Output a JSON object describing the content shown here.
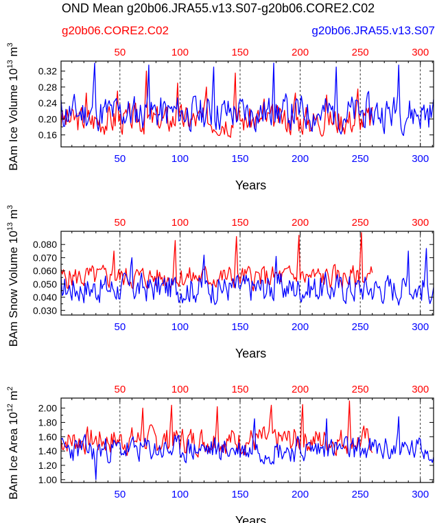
{
  "title": "OND Mean g20b06.JRA55.v13.S07-g20b06.CORE2.C02",
  "legend": {
    "red_label": "g20b06.CORE2.C02",
    "blue_label": "g20b06.JRA55.v13.S07"
  },
  "colors": {
    "red": "#ff0000",
    "blue": "#0000ff",
    "axis": "#000000"
  },
  "chart_data": [
    {
      "type": "line",
      "ylabel_main": "BAm Ice Volume 10",
      "ylabel_exp": "13",
      "ylabel_unit": "m",
      "ylabel_unit_exp": "3",
      "xlabel": "Years",
      "ylim": [
        0.13,
        0.345
      ],
      "yticks": [
        0.16,
        0.2,
        0.24,
        0.28,
        0.32
      ],
      "ytick_labels": [
        "0.16",
        "0.20",
        "0.24",
        "0.28",
        "0.32"
      ],
      "x_bottom_range": [
        1,
        311
      ],
      "x_top_range": [
        1,
        311
      ],
      "xticks": [
        50,
        100,
        150,
        200,
        250,
        300
      ],
      "xtick_labels": [
        "50",
        "100",
        "150",
        "200",
        "250",
        "300"
      ],
      "series": [
        {
          "name": "g20b06.CORE2.C02",
          "color": "red",
          "n": 260,
          "base": 0.198,
          "amp": 0.032,
          "seed": 3,
          "peaks": [
            [
              22,
              0.265
            ],
            [
              48,
              0.27
            ],
            [
              72,
              0.32
            ],
            [
              98,
              0.29
            ],
            [
              122,
              0.28
            ],
            [
              146,
              0.315
            ],
            [
              170,
              0.25
            ],
            [
              196,
              0.265
            ],
            [
              222,
              0.26
            ],
            [
              248,
              0.275
            ]
          ]
        },
        {
          "name": "g20b06.JRA55.v13.S07",
          "color": "blue",
          "n": 311,
          "base": 0.215,
          "amp": 0.04,
          "seed": 11,
          "peaks": [
            [
              29,
              0.34
            ],
            [
              74,
              0.335
            ],
            [
              128,
              0.33
            ],
            [
              178,
              0.34
            ],
            [
              230,
              0.33
            ],
            [
              282,
              0.335
            ]
          ]
        }
      ]
    },
    {
      "type": "line",
      "ylabel_main": "BAm Snow Volume 10",
      "ylabel_exp": "13",
      "ylabel_unit": "m",
      "ylabel_unit_exp": "3",
      "xlabel": "Years",
      "ylim": [
        0.0265,
        0.09
      ],
      "yticks": [
        0.03,
        0.04,
        0.05,
        0.06,
        0.07,
        0.08
      ],
      "ytick_labels": [
        "0.030",
        "0.040",
        "0.050",
        "0.060",
        "0.070",
        "0.080"
      ],
      "x_bottom_range": [
        1,
        311
      ],
      "x_top_range": [
        1,
        311
      ],
      "xticks": [
        50,
        100,
        150,
        200,
        250,
        300
      ],
      "xtick_labels": [
        "50",
        "100",
        "150",
        "200",
        "250",
        "300"
      ],
      "series": [
        {
          "name": "g20b06.CORE2.C02",
          "color": "red",
          "n": 260,
          "base": 0.055,
          "amp": 0.008,
          "seed": 5,
          "peaks": [
            [
              45,
              0.075
            ],
            [
              96,
              0.083
            ],
            [
              147,
              0.086
            ],
            [
              199,
              0.087
            ],
            [
              251,
              0.089
            ]
          ]
        },
        {
          "name": "g20b06.JRA55.v13.S07",
          "color": "blue",
          "n": 311,
          "base": 0.047,
          "amp": 0.01,
          "seed": 17,
          "peaks": [
            [
              60,
              0.07
            ],
            [
              120,
              0.072
            ],
            [
              180,
              0.071
            ],
            [
              290,
              0.075
            ],
            [
              305,
              0.077
            ]
          ]
        }
      ]
    },
    {
      "type": "line",
      "ylabel_main": "BAm Ice Area 10",
      "ylabel_exp": "12",
      "ylabel_unit": "m",
      "ylabel_unit_exp": "2",
      "xlabel": "Years",
      "ylim": [
        0.96,
        2.14
      ],
      "yticks": [
        1.0,
        1.2,
        1.4,
        1.6,
        1.8,
        2.0
      ],
      "ytick_labels": [
        "1.00",
        "1.20",
        "1.40",
        "1.60",
        "1.80",
        "2.00"
      ],
      "x_bottom_range": [
        1,
        311
      ],
      "x_top_range": [
        1,
        311
      ],
      "xticks": [
        50,
        100,
        150,
        200,
        250,
        300
      ],
      "xtick_labels": [
        "50",
        "100",
        "150",
        "200",
        "250",
        "300"
      ],
      "series": [
        {
          "name": "g20b06.CORE2.C02",
          "color": "red",
          "n": 260,
          "base": 1.55,
          "amp": 0.17,
          "seed": 7,
          "peaks": [
            [
              69,
              2.0
            ],
            [
              93,
              2.04
            ],
            [
              131,
              2.02
            ],
            [
              176,
              2.04
            ],
            [
              202,
              2.05
            ],
            [
              241,
              2.1
            ]
          ]
        },
        {
          "name": "g20b06.JRA55.v13.S07",
          "color": "blue",
          "n": 311,
          "base": 1.42,
          "amp": 0.16,
          "seed": 23,
          "peaks": [
            [
              30,
              1.0
            ],
            [
              162,
              1.85
            ],
            [
              222,
              1.85
            ],
            [
              282,
              1.88
            ]
          ]
        }
      ]
    }
  ]
}
